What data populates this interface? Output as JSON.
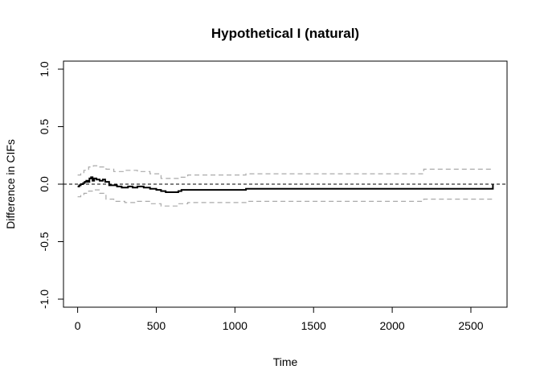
{
  "chart_data": {
    "type": "line",
    "title": "Hypothetical I (natural)",
    "xlabel": "Time",
    "ylabel": "Difference in CIFs",
    "xlim": [
      -90,
      2730
    ],
    "ylim": [
      -1.07,
      1.07
    ],
    "x_ticks": [
      0,
      500,
      1000,
      1500,
      2000,
      2500
    ],
    "y_ticks": [
      -1.0,
      -0.5,
      0.0,
      0.5,
      1.0
    ],
    "x_tick_labels": [
      "0",
      "500",
      "1000",
      "1500",
      "2000",
      "2500"
    ],
    "y_tick_labels": [
      "-1.0",
      "-0.5",
      "0.0",
      "0.5",
      "1.0"
    ],
    "reference_line": {
      "y": 0,
      "style": "dashed",
      "color": "#000000"
    },
    "series": [
      {
        "role": "estimate",
        "color": "#000000",
        "style": "solid-step",
        "x": [
          0,
          10,
          20,
          35,
          45,
          55,
          65,
          75,
          85,
          95,
          105,
          120,
          140,
          160,
          175,
          200,
          220,
          250,
          280,
          320,
          350,
          380,
          420,
          460,
          500,
          530,
          560,
          640,
          660,
          700,
          1070,
          2200,
          2640
        ],
        "y": [
          -0.02,
          -0.01,
          0.0,
          0.01,
          0.02,
          0.03,
          0.02,
          0.05,
          0.06,
          0.03,
          0.05,
          0.04,
          0.03,
          0.04,
          0.02,
          -0.01,
          -0.01,
          -0.02,
          -0.03,
          -0.02,
          -0.03,
          -0.02,
          -0.03,
          -0.04,
          -0.05,
          -0.06,
          -0.07,
          -0.06,
          -0.05,
          -0.05,
          -0.04,
          -0.04,
          0.0
        ]
      },
      {
        "role": "upper-ci",
        "color": "#aaaaaa",
        "style": "dashed-step",
        "x": [
          0,
          20,
          40,
          70,
          100,
          140,
          180,
          230,
          300,
          380,
          460,
          530,
          640,
          700,
          1070,
          2200,
          2640
        ],
        "y": [
          0.08,
          0.1,
          0.12,
          0.15,
          0.16,
          0.15,
          0.13,
          0.11,
          0.12,
          0.11,
          0.09,
          0.05,
          0.06,
          0.08,
          0.09,
          0.13,
          0.13
        ]
      },
      {
        "role": "lower-ci",
        "color": "#aaaaaa",
        "style": "dashed-step",
        "x": [
          0,
          20,
          40,
          70,
          100,
          140,
          180,
          230,
          300,
          380,
          460,
          530,
          640,
          700,
          1070,
          2200,
          2640
        ],
        "y": [
          -0.11,
          -0.09,
          -0.08,
          -0.06,
          -0.05,
          -0.08,
          -0.13,
          -0.15,
          -0.16,
          -0.15,
          -0.17,
          -0.19,
          -0.17,
          -0.16,
          -0.15,
          -0.13,
          -0.13
        ]
      }
    ],
    "grid": false,
    "legend": "none"
  }
}
